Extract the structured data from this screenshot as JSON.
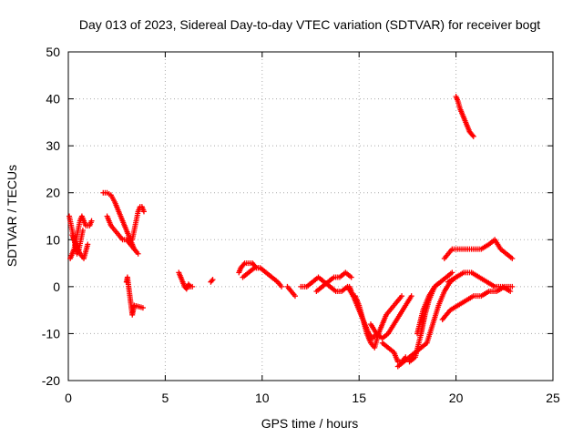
{
  "chart_data": {
    "type": "scatter",
    "title": "Day 013 of 2023, Sidereal Day-to-day VTEC variation (SDTVAR) for receiver bogt",
    "xlabel": "GPS time / hours",
    "ylabel": "SDTVAR / TECUs",
    "xlim": [
      0,
      25
    ],
    "ylim": [
      -20,
      50
    ],
    "xticks": [
      0,
      5,
      10,
      15,
      20,
      25
    ],
    "yticks": [
      -20,
      -10,
      0,
      10,
      20,
      30,
      40,
      50
    ],
    "grid": true,
    "marker": "+",
    "color": "#ff0000",
    "series": [
      {
        "name": "early-cluster-a",
        "x": [
          0.05,
          0.15,
          0.25,
          0.35,
          0.45,
          0.55,
          0.65,
          0.75
        ],
        "y": [
          15,
          13,
          11,
          9,
          7,
          8,
          10,
          12
        ]
      },
      {
        "name": "early-cluster-b",
        "x": [
          0.1,
          0.2,
          0.3,
          0.4,
          0.5,
          0.6,
          0.7,
          0.8,
          0.9,
          1.0,
          1.1,
          1.2
        ],
        "y": [
          6,
          7,
          8,
          10,
          12,
          14,
          15,
          14,
          13,
          13,
          13,
          14
        ]
      },
      {
        "name": "early-cluster-c",
        "x": [
          0.2,
          0.4,
          0.6,
          0.8,
          1.0
        ],
        "y": [
          11,
          9,
          7,
          6,
          9
        ]
      },
      {
        "name": "track-2h-a",
        "x": [
          1.8,
          2.0,
          2.2,
          2.4,
          2.6,
          2.8,
          3.0,
          3.2,
          3.4
        ],
        "y": [
          20,
          20,
          19.5,
          18,
          16,
          14,
          12,
          10,
          8
        ]
      },
      {
        "name": "track-2h-b",
        "x": [
          2.0,
          2.2,
          2.4,
          2.6,
          2.8,
          3.0,
          3.2,
          3.4,
          3.6
        ],
        "y": [
          15,
          13,
          12,
          11,
          10,
          10,
          9,
          8,
          7
        ]
      },
      {
        "name": "track-3h",
        "x": [
          3.3,
          3.4,
          3.5,
          3.6,
          3.7,
          3.8,
          3.9
        ],
        "y": [
          10,
          12,
          14,
          16,
          17,
          17,
          16
        ]
      },
      {
        "name": "outlier-3h",
        "x": [
          3.0,
          3.05,
          3.3,
          3.35,
          3.4,
          3.85
        ],
        "y": [
          1,
          2,
          -6,
          -5,
          -4,
          -4.5
        ]
      },
      {
        "name": "track-6h",
        "x": [
          5.7,
          5.8,
          5.9,
          6.0,
          6.1,
          6.2,
          6.3,
          6.4
        ],
        "y": [
          3,
          2,
          1,
          0,
          -0.5,
          0.5,
          0,
          0
        ]
      },
      {
        "name": "track-7h",
        "x": [
          7.35,
          7.45
        ],
        "y": [
          1,
          1.5
        ]
      },
      {
        "name": "track-9h",
        "x": [
          8.8,
          8.9,
          9.0,
          9.1,
          9.2,
          9.3,
          9.4,
          9.5,
          9.6,
          9.7,
          9.8
        ],
        "y": [
          3,
          4,
          4.5,
          5,
          5,
          5,
          5,
          5,
          4.5,
          4,
          4
        ]
      },
      {
        "name": "track-10h",
        "x": [
          9.0,
          9.3,
          9.6,
          9.9,
          10.2,
          10.5,
          10.8,
          11.0
        ],
        "y": [
          2,
          3,
          4,
          4,
          3,
          2,
          1,
          0
        ]
      },
      {
        "name": "track-12h",
        "x": [
          11.3,
          11.5,
          11.7
        ],
        "y": [
          0,
          -1,
          -2
        ]
      },
      {
        "name": "track-12-14h",
        "x": [
          12.0,
          12.3,
          12.6,
          12.9,
          13.2,
          13.5,
          13.8,
          14.1,
          14.4,
          14.7
        ],
        "y": [
          0,
          0,
          1,
          2,
          1,
          0,
          -1,
          -1,
          0,
          -2
        ]
      },
      {
        "name": "track-13-15h",
        "x": [
          12.8,
          13.1,
          13.4,
          13.7,
          14.0,
          14.3,
          14.6
        ],
        "y": [
          -1,
          0,
          1,
          2,
          2,
          3,
          2
        ]
      },
      {
        "name": "track-15-16h-a",
        "x": [
          14.5,
          14.7,
          14.9,
          15.1,
          15.3,
          15.5,
          15.7,
          15.9
        ],
        "y": [
          0,
          -2,
          -4,
          -6,
          -8,
          -10,
          -11,
          -10
        ]
      },
      {
        "name": "track-15-16h-b",
        "x": [
          14.8,
          15.0,
          15.2,
          15.4,
          15.6,
          15.8,
          16.0,
          16.2,
          16.4,
          16.6,
          16.8,
          17.0,
          17.2
        ],
        "y": [
          -2,
          -4,
          -7,
          -10,
          -12,
          -13,
          -10,
          -8,
          -6,
          -5,
          -4,
          -3,
          -2
        ]
      },
      {
        "name": "track-16-17h",
        "x": [
          15.6,
          15.9,
          16.2,
          16.5,
          16.8,
          17.1,
          17.4,
          17.7
        ],
        "y": [
          -8,
          -10,
          -11,
          -10,
          -8,
          -6,
          -4,
          -2
        ]
      },
      {
        "name": "track-17h",
        "x": [
          16.2,
          16.5,
          16.8,
          17.0,
          17.2,
          17.4
        ],
        "y": [
          -12,
          -13,
          -14,
          -16,
          -16,
          -15
        ]
      },
      {
        "name": "track-17-19h-a",
        "x": [
          17.0,
          17.3,
          17.6,
          17.9,
          18.2,
          18.5,
          18.8,
          19.1,
          19.4,
          19.7,
          20.0
        ],
        "y": [
          -17,
          -16,
          -15,
          -14,
          -13,
          -12,
          -8,
          -4,
          -1,
          1,
          2
        ]
      },
      {
        "name": "track-17-19h-b",
        "x": [
          17.6,
          17.9,
          18.2,
          18.4,
          18.6,
          18.9,
          19.2
        ],
        "y": [
          -16,
          -15,
          -10,
          -6,
          -3,
          0,
          1
        ]
      },
      {
        "name": "track-18-20h",
        "x": [
          18.0,
          18.3,
          18.6,
          18.9,
          19.2,
          19.5,
          19.8
        ],
        "y": [
          -10,
          -5,
          -2,
          0,
          1,
          2,
          3
        ]
      },
      {
        "name": "track-19-23h-upper",
        "x": [
          19.4,
          19.6,
          19.8,
          20.1,
          20.5,
          20.9,
          21.3,
          21.7,
          22.0,
          22.3,
          22.6,
          22.9
        ],
        "y": [
          6,
          7,
          8,
          8,
          8,
          8,
          8,
          9,
          10,
          8,
          7,
          6
        ]
      },
      {
        "name": "track-19-23h-middle",
        "x": [
          19.6,
          20.0,
          20.4,
          20.8,
          21.2,
          21.6,
          22.0,
          22.4,
          22.8
        ],
        "y": [
          1,
          2,
          3,
          3,
          2,
          1,
          0,
          0,
          -1
        ]
      },
      {
        "name": "track-19-23h-lower",
        "x": [
          19.3,
          19.7,
          20.1,
          20.5,
          20.9,
          21.3,
          21.7,
          22.1,
          22.5,
          22.9
        ],
        "y": [
          -7,
          -5,
          -4,
          -3,
          -2,
          -2,
          -1,
          -1,
          0,
          0
        ]
      },
      {
        "name": "track-20h-high",
        "x": [
          20.0,
          20.1,
          20.2,
          20.3,
          20.4,
          20.5,
          20.6,
          20.7,
          20.8,
          20.9
        ],
        "y": [
          40.5,
          39.5,
          38,
          37,
          36,
          35,
          34,
          33,
          32.5,
          32
        ]
      }
    ]
  }
}
